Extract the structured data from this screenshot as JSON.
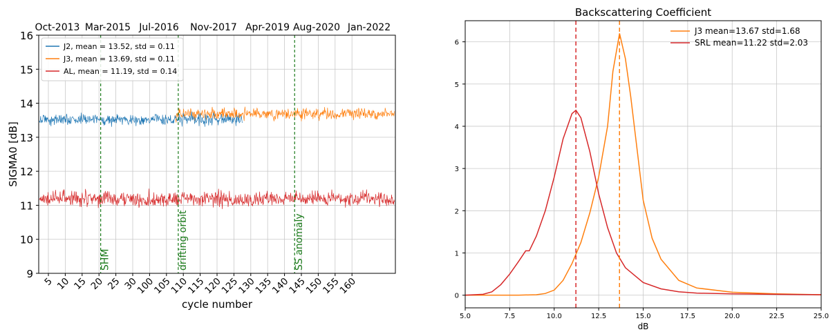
{
  "chart_data": [
    {
      "type": "line",
      "title": "",
      "top_axis_labels": [
        "Oct-2013",
        "Mar-2015",
        "Jul-2016",
        "Nov-2017",
        "Apr-2019",
        "Aug-2020",
        "Jan-2022"
      ],
      "xlabel": "cycle number",
      "ylabel": "SIGMA0 [dB]",
      "ylim": [
        9,
        16
      ],
      "yticks": [
        9,
        10,
        11,
        12,
        13,
        14,
        15,
        16
      ],
      "xtick_labels": [
        "5",
        "10",
        "15",
        "20",
        "25",
        "30",
        "100",
        "105",
        "110",
        "115",
        "120",
        "125",
        "130",
        "135",
        "140",
        "145",
        "150",
        "155",
        "160"
      ],
      "grid": true,
      "legend_position": "top-left",
      "series": [
        {
          "name": "J2, mean = 13.52, std = 0.11",
          "color": "#1f77b4",
          "mean": 13.52,
          "std": 0.11,
          "x_range_tick_index": [
            0,
            11.5
          ]
        },
        {
          "name": "J3, mean = 13.69, std = 0.11",
          "color": "#ff7f0e",
          "mean": 13.69,
          "std": 0.11,
          "x_range_tick_index": [
            7.5,
            25
          ]
        },
        {
          "name": "AL, mean = 11.19, std = 0.14",
          "color": "#d62728",
          "mean": 11.19,
          "std": 0.14,
          "x_range_tick_index": [
            0,
            25
          ]
        }
      ],
      "vlines": [
        {
          "label": "SHM",
          "x_tick_index": 3.1,
          "color": "#1a7a1a"
        },
        {
          "label": "drifting orbit",
          "x_tick_index": 7.7,
          "color": "#1a7a1a"
        },
        {
          "label": "SS anomaly",
          "x_tick_index": 14.6,
          "color": "#1a7a1a"
        }
      ]
    },
    {
      "type": "line",
      "title": "Backscattering Coefficient",
      "xlabel": "dB",
      "ylabel": "",
      "xlim": [
        5,
        25
      ],
      "ylim": [
        -0.3,
        6.5
      ],
      "xticks": [
        "5.0",
        "7.5",
        "10.0",
        "12.5",
        "15.0",
        "17.5",
        "20.0",
        "22.5",
        "25.0"
      ],
      "yticks": [
        0,
        1,
        2,
        3,
        4,
        5,
        6
      ],
      "grid": true,
      "legend_position": "top-right",
      "series": [
        {
          "name": "J3  mean=13.67 std=1.68",
          "color": "#ff7f0e",
          "x": [
            5,
            6,
            7,
            8,
            9,
            9.5,
            10,
            10.5,
            11,
            11.5,
            12,
            12.5,
            13,
            13.3,
            13.67,
            14,
            14.3,
            14.7,
            15,
            15.5,
            16,
            17,
            18,
            20,
            22.5,
            25
          ],
          "values": [
            0,
            0,
            0,
            0,
            0.01,
            0.04,
            0.12,
            0.35,
            0.75,
            1.25,
            1.95,
            2.8,
            4.0,
            5.3,
            6.2,
            5.6,
            4.7,
            3.3,
            2.25,
            1.35,
            0.85,
            0.35,
            0.17,
            0.07,
            0.03,
            0.01
          ]
        },
        {
          "name": "SRL mean=11.22 std=2.03",
          "color": "#d62728",
          "x": [
            5,
            6,
            6.5,
            7,
            7.5,
            8,
            8.4,
            8.6,
            9,
            9.5,
            10,
            10.5,
            11,
            11.22,
            11.5,
            12,
            12.5,
            13,
            13.5,
            14,
            15,
            16,
            17,
            18,
            20,
            25
          ],
          "values": [
            0,
            0.02,
            0.08,
            0.25,
            0.5,
            0.8,
            1.05,
            1.05,
            1.4,
            2.0,
            2.8,
            3.7,
            4.3,
            4.38,
            4.2,
            3.4,
            2.4,
            1.6,
            1.0,
            0.65,
            0.3,
            0.15,
            0.08,
            0.05,
            0.03,
            0.01
          ]
        }
      ],
      "vlines": [
        {
          "x": 11.22,
          "color": "#d62728"
        },
        {
          "x": 13.67,
          "color": "#ff7f0e"
        }
      ]
    }
  ]
}
